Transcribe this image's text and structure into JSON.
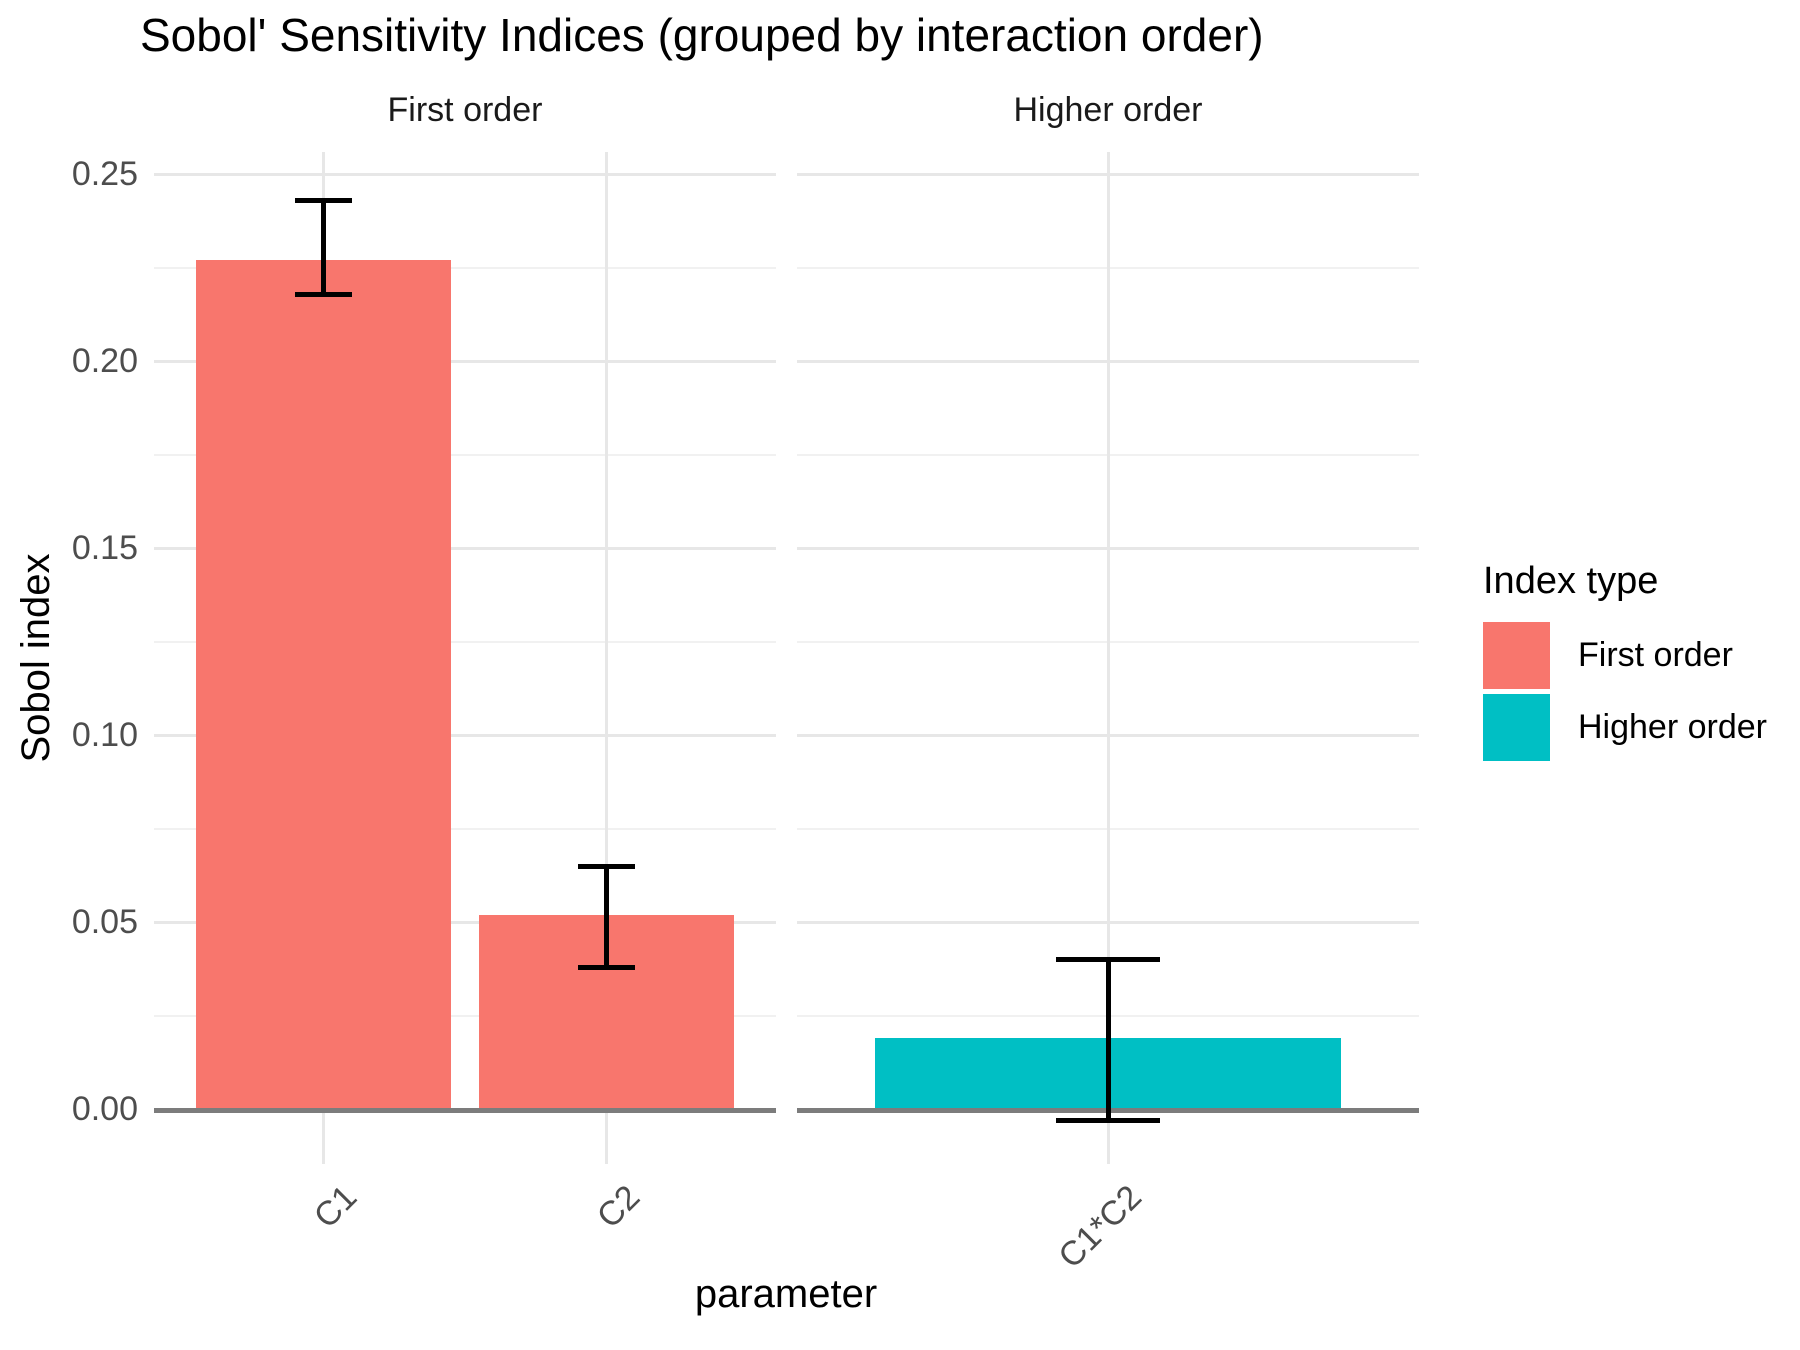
{
  "chart_data": {
    "type": "bar",
    "title": "Sobol' Sensitivity Indices (grouped by interaction order)",
    "xlabel": "parameter",
    "ylabel": "Sobol index",
    "ylim": [
      -0.015,
      0.255
    ],
    "grid": true,
    "ytick_labels": [
      "0.00",
      "0.05",
      "0.10",
      "0.15",
      "0.20",
      "0.25"
    ],
    "ytick_values": [
      0.0,
      0.05,
      0.1,
      0.15,
      0.2,
      0.25
    ],
    "minor_tick_values": [
      0.025,
      0.075,
      0.125,
      0.175,
      0.225
    ],
    "facets": [
      {
        "label": "First order",
        "color": "#F8766D",
        "categories": [
          "C1",
          "C2"
        ],
        "values": [
          0.227,
          0.052
        ],
        "error_low": [
          0.218,
          0.038
        ],
        "error_high": [
          0.243,
          0.065
        ]
      },
      {
        "label": "Higher order",
        "color": "#00BFC4",
        "categories": [
          "C1*C2"
        ],
        "values": [
          0.019
        ],
        "error_low": [
          -0.003
        ],
        "error_high": [
          0.04
        ]
      }
    ],
    "legend": {
      "title": "Index type",
      "position": "right",
      "entries": [
        {
          "label": "First order",
          "color": "#F8766D"
        },
        {
          "label": "Higher order",
          "color": "#00BFC4"
        }
      ]
    },
    "colors": {
      "background": "#FFFFFF",
      "grid_major": "#E7E7E7",
      "grid_minor": "#F1F1F1",
      "zero_line": "#7C7C7C",
      "error_bar": "#000000",
      "tick_label": "#4D4D4D",
      "text": "#1A1A1A"
    }
  }
}
